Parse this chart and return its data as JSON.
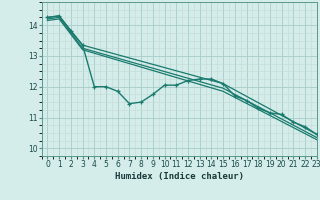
{
  "xlabel": "Humidex (Indice chaleur)",
  "bg_color": "#d4edea",
  "grid_color_major": "#a8ccc8",
  "grid_color_minor": "#c8dedd",
  "line_color": "#1a7a6e",
  "xlim": [
    0,
    23
  ],
  "ylim": [
    9.85,
    14.55
  ],
  "yticks": [
    10,
    11,
    12,
    13,
    14
  ],
  "xticks": [
    0,
    1,
    2,
    3,
    4,
    5,
    6,
    7,
    8,
    9,
    10,
    11,
    12,
    13,
    14,
    15,
    16,
    17,
    18,
    19,
    20,
    21,
    22,
    23
  ],
  "series": [
    {
      "x": [
        0,
        1,
        2,
        3,
        4,
        5,
        6,
        7,
        8,
        9,
        10,
        11,
        12,
        13,
        14,
        15,
        16,
        17,
        18,
        19,
        20,
        21,
        22,
        23
      ],
      "y": [
        14.25,
        14.3,
        13.8,
        13.35,
        12.0,
        12.0,
        11.85,
        11.45,
        11.5,
        11.75,
        12.05,
        12.05,
        12.2,
        12.25,
        12.25,
        12.1,
        11.7,
        11.55,
        11.3,
        11.15,
        11.1,
        10.85,
        10.7,
        10.45
      ],
      "has_markers": true,
      "linewidth": 1.0,
      "markersize": 3.5
    },
    {
      "x": [
        0,
        1,
        3,
        15,
        23
      ],
      "y": [
        14.25,
        14.3,
        13.35,
        12.1,
        10.45
      ],
      "has_markers": false,
      "linewidth": 0.9
    },
    {
      "x": [
        0,
        1,
        3,
        15,
        23
      ],
      "y": [
        14.2,
        14.25,
        13.25,
        11.95,
        10.35
      ],
      "has_markers": false,
      "linewidth": 0.9
    },
    {
      "x": [
        0,
        1,
        3,
        15,
        23
      ],
      "y": [
        14.15,
        14.2,
        13.2,
        11.85,
        10.28
      ],
      "has_markers": false,
      "linewidth": 0.9
    }
  ]
}
